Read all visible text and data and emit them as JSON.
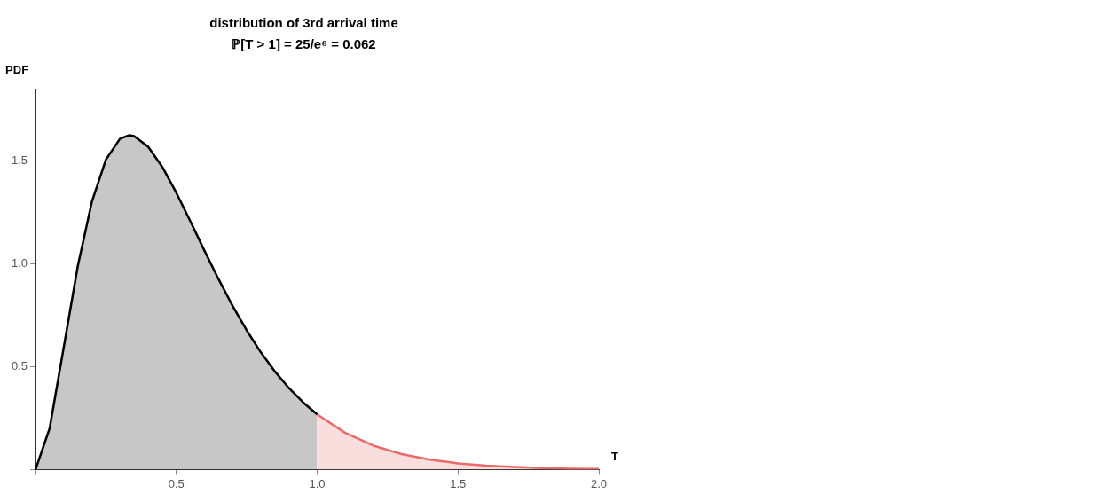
{
  "chart_data": {
    "type": "area",
    "title": "distribution of 3rd arrival time",
    "subtitle": "ℙ[T > 1] = 25/e⁶ = 0.062",
    "xlabel": "T",
    "ylabel": "PDF",
    "marker": "none",
    "xlim": [
      0,
      2
    ],
    "ylim": [
      0,
      1.85
    ],
    "xticks": [
      {
        "value": 0,
        "label": null
      },
      0.5,
      {
        "value": 1,
        "label": "1.0"
      },
      1.5,
      {
        "value": 2,
        "label": "2.0"
      }
    ],
    "yticks": [
      {
        "value": 0,
        "label": null
      },
      0.5,
      {
        "value": 1,
        "label": "1.0"
      },
      1.5
    ],
    "series": [
      {
        "color": "#000000",
        "x": [
          0,
          0.05,
          0.1,
          0.15,
          0.2,
          0.25,
          0.3,
          0.333,
          0.35,
          0.4,
          0.45,
          0.5,
          0.55,
          0.6,
          0.65,
          0.7,
          0.75,
          0.8,
          0.85,
          0.9,
          0.95,
          1
        ],
        "values": [
          0,
          0.2,
          0.593,
          0.988,
          1.301,
          1.506,
          1.607,
          1.624,
          1.62,
          1.568,
          1.47,
          1.344,
          1.205,
          1.062,
          0.924,
          0.794,
          0.675,
          0.569,
          0.476,
          0.395,
          0.326,
          0.268
        ]
      },
      {
        "color": "#e86a6a",
        "x": [
          1,
          1.1,
          1.2,
          1.3,
          1.4,
          1.5,
          1.6,
          1.7,
          1.8,
          1.9,
          2
        ],
        "values": [
          0.268,
          0.178,
          0.116,
          0.075,
          0.048,
          0.03,
          0.019,
          0.012,
          0.007,
          0.004,
          0.003
        ]
      }
    ]
  }
}
